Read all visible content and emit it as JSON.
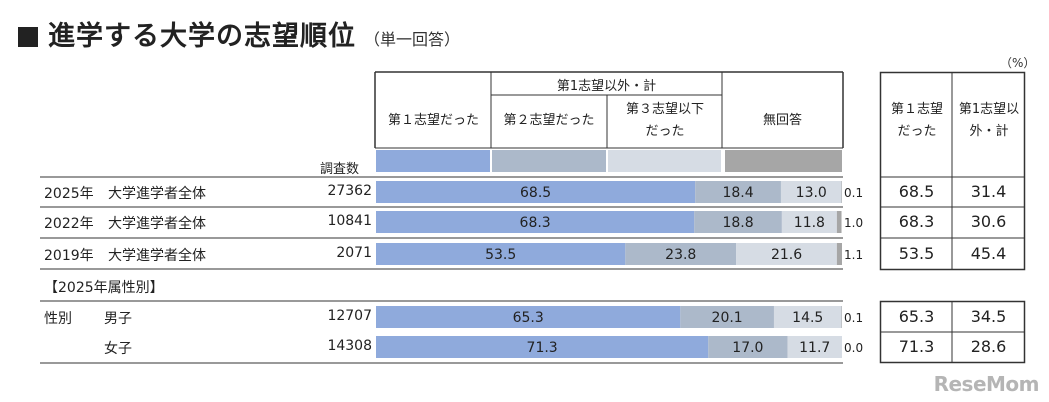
{
  "title": "進学する大学の志望順位",
  "subtitle": "（単一回答）",
  "unit": "（%）",
  "header": {
    "group_label": "第1志望以外・計",
    "cat1": "第１志望だった",
    "cat2": "第２志望だった",
    "cat3": "第３志望以下だった",
    "cat4": "無回答",
    "count_label": "調査数",
    "side1": "第１志望だった",
    "side2": "第1志望以外・計"
  },
  "section_label": "【2025年属性別】",
  "chart_data": {
    "type": "bar",
    "stacked": true,
    "orientation": "horizontal",
    "categories": [
      "2025年　大学進学者全体",
      "2022年　大学進学者全体",
      "2019年　大学進学者全体",
      "男子",
      "女子"
    ],
    "row_group_label": [
      "2025年",
      "2022年",
      "2019年",
      "性別",
      ""
    ],
    "row_label": [
      "大学進学者全体",
      "大学進学者全体",
      "大学進学者全体",
      "男子",
      "女子"
    ],
    "counts": [
      27362,
      10841,
      2071,
      12707,
      14308
    ],
    "series": [
      {
        "name": "第１志望だった",
        "values": [
          68.5,
          68.3,
          53.5,
          65.3,
          71.3
        ],
        "color": "#8faadc"
      },
      {
        "name": "第２志望だった",
        "values": [
          18.4,
          18.8,
          23.8,
          20.1,
          17.0
        ],
        "color": "#acb9ca"
      },
      {
        "name": "第３志望以下だった",
        "values": [
          13.0,
          11.8,
          21.6,
          14.5,
          11.7
        ],
        "color": "#d6dce4"
      },
      {
        "name": "無回答",
        "values": [
          0.1,
          1.0,
          1.1,
          0.1,
          0.0
        ],
        "color": "#a6a6a6"
      }
    ],
    "side_first": [
      "68.5",
      "68.3",
      "53.5",
      "65.3",
      "71.3"
    ],
    "side_other": [
      "31.4",
      "30.6",
      "45.4",
      "34.5",
      "28.6"
    ],
    "xlim": [
      0,
      100
    ]
  },
  "logo": "ReseMom"
}
